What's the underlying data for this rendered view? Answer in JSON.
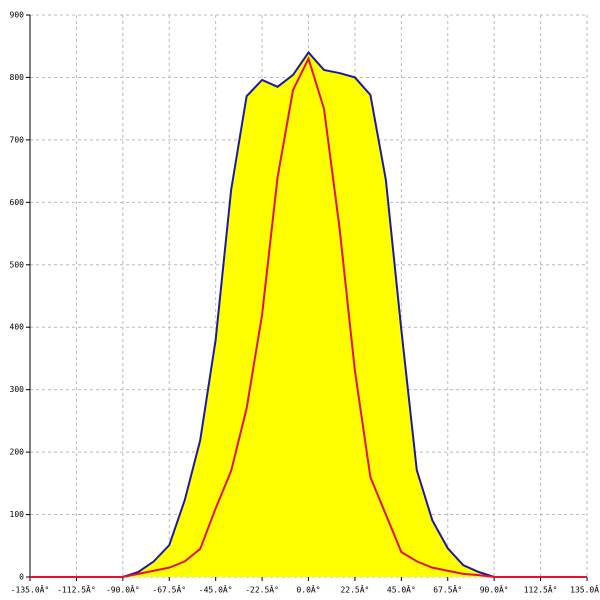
{
  "chart_data": {
    "type": "line",
    "x": [
      -135,
      -127.5,
      -120,
      -112.5,
      -105,
      -97.5,
      -90,
      -82.5,
      -75,
      -67.5,
      -60,
      -52.5,
      -45,
      -37.5,
      -30,
      -22.5,
      -15,
      -7.5,
      0,
      7.5,
      15,
      22.5,
      30,
      37.5,
      45,
      52.5,
      60,
      67.5,
      75,
      82.5,
      90,
      97.5,
      105,
      112.5,
      120,
      127.5,
      135
    ],
    "series": [
      {
        "color": "#1a1aa6",
        "fill": "#ffff00",
        "values": [
          0,
          0,
          0,
          0,
          0,
          0,
          0,
          8,
          25,
          51,
          123,
          219,
          380,
          620,
          770,
          796,
          785,
          804,
          840,
          812,
          807,
          800,
          772,
          636,
          396,
          171,
          91,
          46,
          19,
          8,
          0,
          0,
          0,
          0,
          0,
          0,
          0
        ]
      },
      {
        "color": "#e8102a",
        "values": [
          0,
          0,
          0,
          0,
          0,
          0,
          0,
          5,
          10,
          15,
          25,
          45,
          110,
          170,
          270,
          420,
          640,
          780,
          830,
          750,
          560,
          330,
          160,
          100,
          40,
          25,
          15,
          10,
          5,
          3,
          0,
          0,
          0,
          0,
          0,
          0,
          0
        ]
      }
    ],
    "xlim": [
      -135,
      135
    ],
    "xticks": [
      {
        "value": -135,
        "label": "-135.0Â°"
      },
      {
        "value": -112.5,
        "label": "-112.5Â°"
      },
      {
        "value": -90,
        "label": "-90.0Â°"
      },
      {
        "value": -67.5,
        "label": "-67.5Â°"
      },
      {
        "value": -45,
        "label": "-45.0Â°"
      },
      {
        "value": -22.5,
        "label": "-22.5Â°"
      },
      {
        "value": 0,
        "label": "0.0Â°"
      },
      {
        "value": 22.5,
        "label": "22.5Â°"
      },
      {
        "value": 45,
        "label": "45.0Â°"
      },
      {
        "value": 67.5,
        "label": "67.5Â°"
      },
      {
        "value": 90,
        "label": "90.0Â°"
      },
      {
        "value": 112.5,
        "label": "112.5Â°"
      },
      {
        "value": 135,
        "label": "135.0Â°"
      }
    ],
    "ylim": [
      0,
      900
    ],
    "yticks": [
      0,
      100,
      200,
      300,
      400,
      500,
      600,
      700,
      800,
      900
    ],
    "grid": true
  }
}
